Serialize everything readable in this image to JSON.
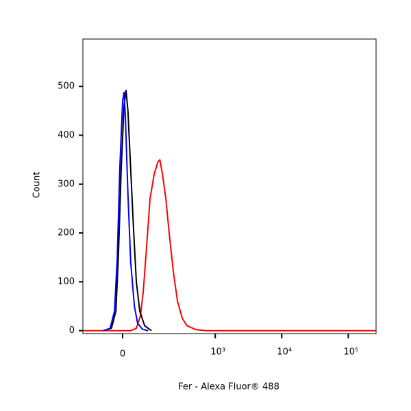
{
  "chart_data": {
    "type": "line",
    "x_label": "Fer - Alexa Fluor® 488",
    "y_label": "Count",
    "xscale": "biexponential",
    "xlim": [
      -150,
      262144
    ],
    "xticks": [
      0,
      {
        "value": 1000,
        "label": "10³"
      },
      {
        "value": 10000,
        "label": "10⁴"
      },
      {
        "value": 100000,
        "label": "10⁵"
      }
    ],
    "ylim": [
      -6,
      597
    ],
    "yticks": [
      0,
      100,
      200,
      300,
      400,
      500
    ],
    "series": [
      {
        "color": "#ff0000",
        "x": [
          -150,
          23,
          40,
          53,
          63,
          75,
          89,
          107,
          125,
          136,
          151,
          172,
          195,
          228,
          265,
          315,
          373,
          511,
          732,
          262144
        ],
        "values": [
          0,
          0,
          5,
          30,
          80,
          170,
          270,
          320,
          345,
          350,
          320,
          270,
          200,
          120,
          60,
          25,
          10,
          2,
          0,
          0
        ]
      },
      {
        "color": "#000000",
        "x": [
          -58,
          -32,
          -19,
          -12,
          -4,
          4,
          9.6,
          15,
          23,
          32,
          40,
          51,
          68,
          95
        ],
        "values": [
          0,
          5,
          40,
          150,
          330,
          460,
          492,
          450,
          330,
          200,
          100,
          40,
          10,
          0
        ]
      },
      {
        "color": "#0000ff",
        "x": [
          -58,
          -36,
          -23,
          -15,
          -8,
          0,
          4,
          7.7,
          15,
          23,
          34,
          44,
          60,
          81
        ],
        "values": [
          0,
          5,
          40,
          150,
          330,
          470,
          488,
          440,
          280,
          140,
          50,
          15,
          3,
          0
        ]
      }
    ]
  }
}
